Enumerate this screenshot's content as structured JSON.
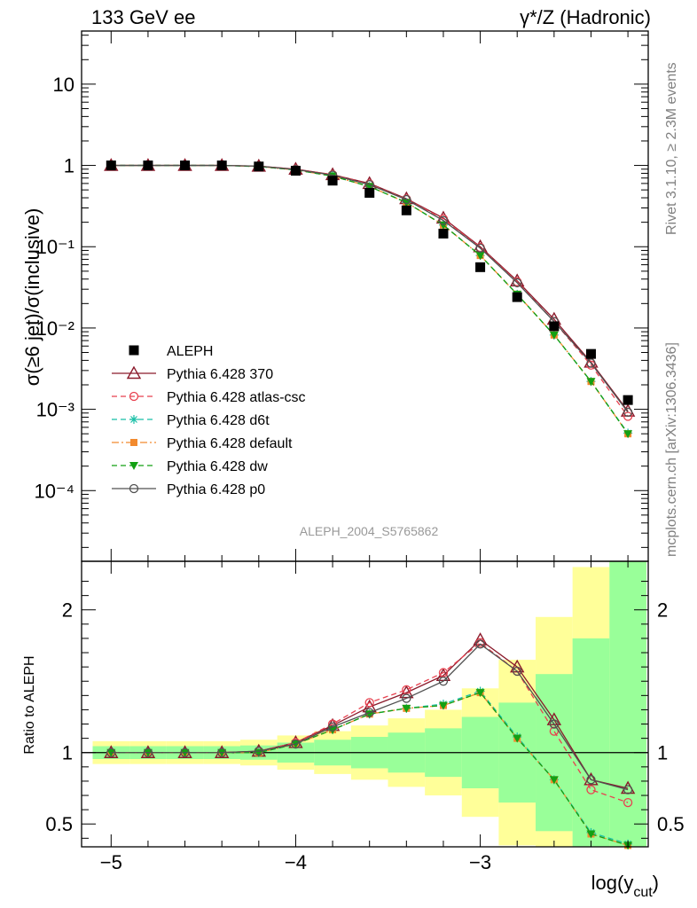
{
  "header": {
    "left": "133 GeV ee",
    "right": "γ*/Z (Hadronic)"
  },
  "side_text": {
    "top": "Rivet 3.1.10, ≥ 2.3M events",
    "bottom": "mcplots.cern.ch [arXiv:1306.3436]"
  },
  "watermark": "ALEPH_2004_S5765862",
  "colors": {
    "data": "#000000",
    "p370": "#8b1a2b",
    "atlas": "#e8414f",
    "d6t": "#17bfa6",
    "default": "#f28a2e",
    "dw": "#13a013",
    "p0": "#505050",
    "band_inner": "#99ff99",
    "band_outer": "#ffff99"
  },
  "chart_data": [
    {
      "type": "scatter",
      "title": "",
      "xlabel": "log(y_cut)",
      "ylabel": "σ(≥6 jet)/σ(inclusive)",
      "yscale": "log",
      "xlim": [
        -5.16,
        -2.09
      ],
      "ylim": [
        1.35e-05,
        45
      ],
      "x_ticks": [
        "−5",
        "−4",
        "−3"
      ],
      "y_ticks": [
        "10⁻⁴",
        "10⁻³",
        "10⁻²",
        "10⁻¹",
        "1",
        "10"
      ],
      "legend_position": "bottom-left",
      "x": [
        -5.0,
        -4.8,
        -4.6,
        -4.4,
        -4.2,
        -4.0,
        -3.8,
        -3.6,
        -3.4,
        -3.2,
        -3.0,
        -2.8,
        -2.6,
        -2.4,
        -2.2
      ],
      "series": [
        {
          "name": "ALEPH",
          "key": "data",
          "style": "data",
          "values": [
            1.0,
            1.0,
            1.0,
            1.0,
            0.97,
            0.86,
            0.65,
            0.46,
            0.28,
            0.145,
            0.056,
            0.024,
            0.0105,
            0.0048,
            0.0013
          ]
        },
        {
          "name": "Pythia 6.428 370",
          "key": "p370",
          "marker": "triangle",
          "dash": "solid",
          "values": [
            1.0,
            1.0,
            1.0,
            1.0,
            0.98,
            0.9,
            0.77,
            0.6,
            0.39,
            0.225,
            0.1,
            0.038,
            0.0128,
            0.0038,
            0.00095
          ]
        },
        {
          "name": "Pythia 6.428 atlas-csc",
          "key": "atlas",
          "marker": "circle",
          "dash": "dashed",
          "values": [
            1.0,
            1.0,
            1.0,
            1.0,
            0.98,
            0.9,
            0.77,
            0.59,
            0.385,
            0.22,
            0.098,
            0.037,
            0.012,
            0.0035,
            0.00082
          ]
        },
        {
          "name": "Pythia 6.428 d6t",
          "key": "d6t",
          "marker": "star",
          "dash": "dashed",
          "values": [
            1.0,
            1.0,
            1.0,
            1.0,
            0.97,
            0.88,
            0.74,
            0.55,
            0.35,
            0.185,
            0.078,
            0.026,
            0.0082,
            0.0022,
            0.00051
          ]
        },
        {
          "name": "Pythia 6.428 default",
          "key": "default",
          "marker": "square",
          "dash": "dashdot",
          "values": [
            1.0,
            1.0,
            1.0,
            1.0,
            0.97,
            0.88,
            0.74,
            0.55,
            0.35,
            0.185,
            0.078,
            0.026,
            0.0082,
            0.0022,
            0.0005
          ]
        },
        {
          "name": "Pythia 6.428 dw",
          "key": "dw",
          "marker": "triangledown",
          "dash": "dashed",
          "values": [
            1.0,
            1.0,
            1.0,
            1.0,
            0.97,
            0.88,
            0.74,
            0.55,
            0.35,
            0.185,
            0.078,
            0.026,
            0.0082,
            0.0022,
            0.0005
          ]
        },
        {
          "name": "Pythia 6.428 p0",
          "key": "p0",
          "marker": "circle",
          "dash": "solid",
          "values": [
            1.0,
            1.0,
            1.0,
            1.0,
            0.98,
            0.89,
            0.76,
            0.58,
            0.38,
            0.21,
            0.096,
            0.036,
            0.012,
            0.0037,
            0.00092
          ]
        }
      ]
    },
    {
      "type": "line",
      "title": "",
      "xlabel": "log(y_cut)",
      "ylabel": "Ratio to ALEPH",
      "ylim": [
        0.34,
        2.34
      ],
      "y_ticks": [
        "0.5",
        "1",
        "2"
      ],
      "x": [
        -5.0,
        -4.8,
        -4.6,
        -4.4,
        -4.2,
        -4.0,
        -3.8,
        -3.6,
        -3.4,
        -3.2,
        -3.0,
        -2.8,
        -2.6,
        -2.4,
        -2.2
      ],
      "uncertainty_bands": {
        "x_edges": [
          -5.1,
          -4.9,
          -4.7,
          -4.5,
          -4.3,
          -4.1,
          -3.9,
          -3.7,
          -3.5,
          -3.3,
          -3.1,
          -2.9,
          -2.7,
          -2.5,
          -2.3,
          -2.1
        ],
        "inner": [
          0.045,
          0.045,
          0.045,
          0.045,
          0.05,
          0.07,
          0.09,
          0.11,
          0.14,
          0.17,
          0.25,
          0.35,
          0.55,
          0.8,
          1.4
        ],
        "outer": [
          0.08,
          0.08,
          0.08,
          0.08,
          0.09,
          0.12,
          0.15,
          0.19,
          0.24,
          0.3,
          0.45,
          0.65,
          0.95,
          1.3,
          2.0
        ]
      },
      "series": [
        {
          "name": "Pythia 6.428 370",
          "key": "p370",
          "marker": "triangle",
          "dash": "solid",
          "values": [
            1.0,
            1.0,
            1.0,
            1.0,
            1.01,
            1.07,
            1.19,
            1.32,
            1.42,
            1.54,
            1.79,
            1.6,
            1.23,
            0.81,
            0.75
          ]
        },
        {
          "name": "Pythia 6.428 atlas-csc",
          "key": "atlas",
          "marker": "circle",
          "dash": "dashed",
          "values": [
            1.0,
            1.0,
            1.0,
            1.0,
            1.01,
            1.07,
            1.2,
            1.35,
            1.44,
            1.56,
            1.77,
            1.57,
            1.15,
            0.74,
            0.65
          ]
        },
        {
          "name": "Pythia 6.428 d6t",
          "key": "d6t",
          "marker": "star",
          "dash": "dashed",
          "values": [
            1.0,
            1.0,
            1.0,
            1.0,
            1.0,
            1.06,
            1.16,
            1.27,
            1.31,
            1.34,
            1.43,
            1.11,
            0.81,
            0.44,
            0.36
          ]
        },
        {
          "name": "Pythia 6.428 default",
          "key": "default",
          "marker": "square",
          "dash": "dashdot",
          "values": [
            1.0,
            1.0,
            1.0,
            1.0,
            1.0,
            1.06,
            1.16,
            1.27,
            1.31,
            1.33,
            1.42,
            1.1,
            0.81,
            0.43,
            0.35
          ]
        },
        {
          "name": "Pythia 6.428 dw",
          "key": "dw",
          "marker": "triangledown",
          "dash": "dashed",
          "values": [
            1.0,
            1.0,
            1.0,
            1.0,
            1.0,
            1.06,
            1.16,
            1.27,
            1.31,
            1.33,
            1.42,
            1.1,
            0.81,
            0.43,
            0.35
          ]
        },
        {
          "name": "Pythia 6.428 p0",
          "key": "p0",
          "marker": "circle",
          "dash": "solid",
          "values": [
            1.0,
            1.0,
            1.0,
            1.0,
            1.01,
            1.06,
            1.18,
            1.28,
            1.38,
            1.5,
            1.76,
            1.57,
            1.2,
            0.81,
            0.74
          ]
        }
      ]
    }
  ]
}
